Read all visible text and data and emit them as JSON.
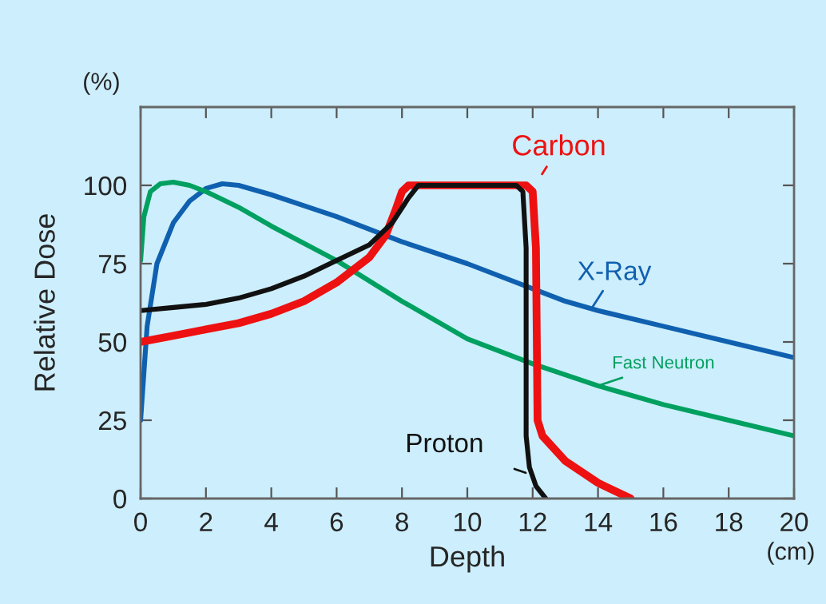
{
  "chart_data": {
    "type": "line",
    "xlabel": "Depth",
    "ylabel": "Relative Dose",
    "xlim": [
      0,
      20
    ],
    "ylim": [
      0,
      125
    ],
    "xticks": [
      0,
      2,
      4,
      6,
      8,
      10,
      12,
      14,
      16,
      18,
      20
    ],
    "yticks": [
      0,
      25,
      50,
      75,
      100
    ],
    "grid": false,
    "legend": false,
    "marker": "none",
    "line_style": "solid",
    "annotations": [
      "(%)",
      "(cm)"
    ],
    "series": [
      {
        "name": "X-Ray",
        "color": "#1060b0",
        "x": [
          0,
          0.2,
          0.5,
          1,
          1.5,
          2,
          2.5,
          3,
          4,
          6,
          8,
          10,
          12,
          13,
          14,
          16,
          18,
          20
        ],
        "values": [
          25,
          55,
          75,
          88,
          95,
          99,
          100.5,
          100,
          97,
          90,
          82,
          75,
          67,
          63,
          60,
          55,
          50,
          45
        ]
      },
      {
        "name": "Fast Neutron",
        "color": "#00a060",
        "x": [
          0,
          0.1,
          0.3,
          0.6,
          1,
          1.5,
          2,
          3,
          4,
          6,
          8,
          10,
          12,
          14,
          16,
          18,
          20
        ],
        "values": [
          76,
          90,
          98,
          100.5,
          101,
          100,
          98,
          93,
          87,
          76,
          63,
          51,
          43,
          36,
          30,
          25,
          20
        ]
      },
      {
        "name": "Carbon",
        "color": "#ee1111",
        "x": [
          0,
          1,
          2,
          3,
          4,
          5,
          6,
          7,
          7.5,
          7.8,
          8,
          8.2,
          11.8,
          12,
          12.1,
          12.15,
          12.3,
          13,
          14,
          15
        ],
        "values": [
          50,
          52,
          54,
          56,
          59,
          63,
          69,
          77,
          84,
          92,
          98,
          100,
          100,
          98,
          80,
          25,
          20,
          12,
          5,
          0
        ]
      },
      {
        "name": "Proton",
        "color": "#111111",
        "x": [
          0,
          1,
          2,
          3,
          4,
          5,
          6,
          7,
          7.7,
          8.2,
          8.5,
          11.5,
          11.7,
          11.8,
          11.8,
          11.9,
          12.1,
          12.4
        ],
        "values": [
          60,
          61,
          62,
          64,
          67,
          71,
          76,
          81,
          88,
          96,
          100,
          100,
          98,
          80,
          20,
          10,
          4,
          0
        ]
      }
    ]
  }
}
